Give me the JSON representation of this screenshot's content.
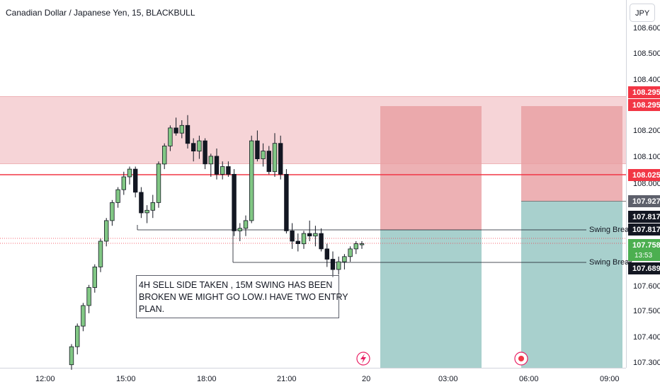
{
  "header": {
    "symbol_title": "Canadian Dollar / Japanese Yen, 15, BLACKBULL",
    "currency_button": "JPY"
  },
  "price_axis": {
    "ticks": [
      "108.600",
      "108.500",
      "108.400",
      "108.200",
      "108.100",
      "107.600",
      "107.500",
      "107.400",
      "107.300"
    ],
    "partial_ticks": [
      "108.000",
      "107.900"
    ]
  },
  "time_axis": {
    "ticks": [
      "12:00",
      "15:00",
      "18:00",
      "21:00",
      "20",
      "03:00",
      "06:00",
      "09:00"
    ]
  },
  "badges": {
    "target_top": "108.295",
    "target_bottom": "108.295",
    "resistance": "108.025",
    "stop": "107.927",
    "swing_high": "107.817",
    "swing_high_2": "107.817",
    "last_price": "107.758",
    "countdown": "13:53",
    "swing_low": "107.689"
  },
  "annotations": {
    "swing_break_1": "Swing Break",
    "swing_break_2": "Swing Break",
    "note_lines": [
      "4H SELL SIDE TAKEN , 15M SWING HAS BEEN",
      "BROKEN WE MIGHT GO LOW.I HAVE TWO ENTRY",
      "PLAN."
    ]
  },
  "colors": {
    "bull": "#81c784",
    "bear": "#131722",
    "supply_zone": "#f3c6c9",
    "stop_zone": "#e89ea1",
    "target_zone": "#a8d0cd",
    "resistance_line": "#f23645",
    "last_price": "#4caf50"
  },
  "icons": {
    "event_flash": "flash-event-icon",
    "event_record": "record-event-icon"
  },
  "chart_data": {
    "type": "candlestick",
    "symbol": "CADJPY",
    "timeframe": "15",
    "resistance": 108.025,
    "supply_zone": [
      108.078,
      108.295
    ],
    "swing_levels": [
      107.817,
      107.689
    ],
    "last_price": 107.758,
    "positions": [
      {
        "entry": 107.817,
        "stop": 108.295,
        "target": 107.3
      },
      {
        "entry": 107.927,
        "stop": 108.295,
        "target": 107.3
      }
    ],
    "candles": [
      {
        "o": 107.29,
        "h": 107.37,
        "l": 107.27,
        "c": 107.36
      },
      {
        "o": 107.36,
        "h": 107.45,
        "l": 107.33,
        "c": 107.44
      },
      {
        "o": 107.44,
        "h": 107.53,
        "l": 107.42,
        "c": 107.52
      },
      {
        "o": 107.52,
        "h": 107.6,
        "l": 107.49,
        "c": 107.59
      },
      {
        "o": 107.59,
        "h": 107.68,
        "l": 107.57,
        "c": 107.67
      },
      {
        "o": 107.67,
        "h": 107.78,
        "l": 107.65,
        "c": 107.77
      },
      {
        "o": 107.77,
        "h": 107.86,
        "l": 107.75,
        "c": 107.85
      },
      {
        "o": 107.85,
        "h": 107.93,
        "l": 107.83,
        "c": 107.92
      },
      {
        "o": 107.92,
        "h": 107.98,
        "l": 107.9,
        "c": 107.97
      },
      {
        "o": 107.97,
        "h": 108.04,
        "l": 107.95,
        "c": 108.02
      },
      {
        "o": 108.02,
        "h": 108.06,
        "l": 107.99,
        "c": 108.05
      },
      {
        "o": 108.05,
        "h": 108.06,
        "l": 107.94,
        "c": 107.96
      },
      {
        "o": 107.96,
        "h": 107.98,
        "l": 107.86,
        "c": 107.88
      },
      {
        "o": 107.88,
        "h": 107.91,
        "l": 107.84,
        "c": 107.89
      },
      {
        "o": 107.89,
        "h": 107.95,
        "l": 107.86,
        "c": 107.92
      },
      {
        "o": 107.92,
        "h": 108.08,
        "l": 107.9,
        "c": 108.07
      },
      {
        "o": 108.07,
        "h": 108.15,
        "l": 108.05,
        "c": 108.14
      },
      {
        "o": 108.14,
        "h": 108.22,
        "l": 108.12,
        "c": 108.21
      },
      {
        "o": 108.21,
        "h": 108.25,
        "l": 108.18,
        "c": 108.19
      },
      {
        "o": 108.19,
        "h": 108.24,
        "l": 108.17,
        "c": 108.22
      },
      {
        "o": 108.22,
        "h": 108.26,
        "l": 108.13,
        "c": 108.15
      },
      {
        "o": 108.15,
        "h": 108.17,
        "l": 108.08,
        "c": 108.12
      },
      {
        "o": 108.12,
        "h": 108.18,
        "l": 108.09,
        "c": 108.16
      },
      {
        "o": 108.16,
        "h": 108.17,
        "l": 108.05,
        "c": 108.07
      },
      {
        "o": 108.07,
        "h": 108.11,
        "l": 108.02,
        "c": 108.1
      },
      {
        "o": 108.1,
        "h": 108.13,
        "l": 108.01,
        "c": 108.03
      },
      {
        "o": 108.03,
        "h": 108.08,
        "l": 108.01,
        "c": 108.06
      },
      {
        "o": 108.06,
        "h": 108.08,
        "l": 108.02,
        "c": 108.03
      },
      {
        "o": 108.03,
        "h": 108.05,
        "l": 107.79,
        "c": 107.81
      },
      {
        "o": 107.81,
        "h": 107.84,
        "l": 107.77,
        "c": 107.82
      },
      {
        "o": 107.82,
        "h": 107.87,
        "l": 107.79,
        "c": 107.85
      },
      {
        "o": 107.85,
        "h": 108.18,
        "l": 107.84,
        "c": 108.16
      },
      {
        "o": 108.16,
        "h": 108.2,
        "l": 108.08,
        "c": 108.09
      },
      {
        "o": 108.09,
        "h": 108.15,
        "l": 108.06,
        "c": 108.12
      },
      {
        "o": 108.12,
        "h": 108.14,
        "l": 108.03,
        "c": 108.04
      },
      {
        "o": 108.04,
        "h": 108.19,
        "l": 108.02,
        "c": 108.15
      },
      {
        "o": 108.15,
        "h": 108.18,
        "l": 108.01,
        "c": 108.03
      },
      {
        "o": 108.03,
        "h": 108.05,
        "l": 107.8,
        "c": 107.81
      },
      {
        "o": 107.81,
        "h": 107.84,
        "l": 107.74,
        "c": 107.77
      },
      {
        "o": 107.77,
        "h": 107.8,
        "l": 107.73,
        "c": 107.76
      },
      {
        "o": 107.76,
        "h": 107.81,
        "l": 107.74,
        "c": 107.8
      },
      {
        "o": 107.8,
        "h": 107.85,
        "l": 107.77,
        "c": 107.79
      },
      {
        "o": 107.79,
        "h": 107.83,
        "l": 107.75,
        "c": 107.8
      },
      {
        "o": 107.8,
        "h": 107.82,
        "l": 107.73,
        "c": 107.74
      },
      {
        "o": 107.74,
        "h": 107.76,
        "l": 107.67,
        "c": 107.7
      },
      {
        "o": 107.7,
        "h": 107.73,
        "l": 107.63,
        "c": 107.66
      },
      {
        "o": 107.66,
        "h": 107.71,
        "l": 107.64,
        "c": 107.69
      },
      {
        "o": 107.69,
        "h": 107.72,
        "l": 107.66,
        "c": 107.71
      },
      {
        "o": 107.71,
        "h": 107.75,
        "l": 107.69,
        "c": 107.74
      },
      {
        "o": 107.74,
        "h": 107.77,
        "l": 107.72,
        "c": 107.76
      },
      {
        "o": 107.76,
        "h": 107.77,
        "l": 107.74,
        "c": 107.76
      }
    ]
  }
}
